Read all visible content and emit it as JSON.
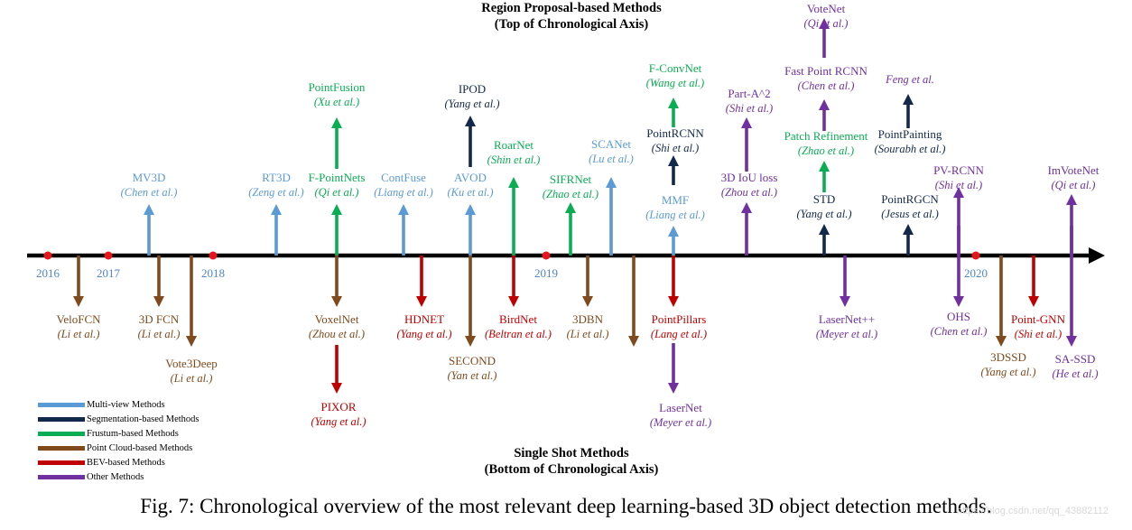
{
  "headers": {
    "top_line1": "Region Proposal-based Methods",
    "top_line2": "(Top of Chronological Axis)",
    "bottom_line1": "Single Shot Methods",
    "bottom_line2": "(Bottom of Chronological Axis)"
  },
  "caption": "Fig. 7: Chronological overview of the most relevant deep learning-based 3D object detection methods.",
  "watermark": "https://blog.csdn.net/qq_43882112",
  "colors": {
    "multiview": "#5b9bd5",
    "segmentation": "#13294b",
    "frustum": "#0aad53",
    "pointcloud": "#7f4a1c",
    "bev": "#c00000",
    "other": "#7030a0",
    "axis": "#000000",
    "marker": "#e8151b",
    "year_text": "#4f86c6"
  },
  "legend": [
    {
      "key": "multiview",
      "label": "Multi-view Methods"
    },
    {
      "key": "segmentation",
      "label": "Segmentation-based Methods"
    },
    {
      "key": "frustum",
      "label": "Frustum-based Methods"
    },
    {
      "key": "pointcloud",
      "label": "Point Cloud-based Methods"
    },
    {
      "key": "bev",
      "label": "BEV-based Methods"
    },
    {
      "key": "other",
      "label": "Other Methods"
    }
  ],
  "years": [
    "2016",
    "2017",
    "2018",
    "2019",
    "2020"
  ],
  "top_methods": [
    {
      "name": "MV3D",
      "cite": "(Chen et al.)",
      "type": "multiview"
    },
    {
      "name": "RT3D",
      "cite": "(Zeng et al.)",
      "type": "multiview"
    },
    {
      "name": "F-PointNets",
      "cite": "(Qi et al.)",
      "type": "frustum"
    },
    {
      "name": "PointFusion",
      "cite": "(Xu et al.)",
      "type": "frustum"
    },
    {
      "name": "ContFuse",
      "cite": "(Liang et al.)",
      "type": "multiview"
    },
    {
      "name": "AVOD",
      "cite": "(Ku et al.)",
      "type": "multiview"
    },
    {
      "name": "IPOD",
      "cite": "(Yang et al.)",
      "type": "segmentation"
    },
    {
      "name": "RoarNet",
      "cite": "(Shin et al.)",
      "type": "frustum"
    },
    {
      "name": "SIFRNet",
      "cite": "(Zhao et al.)",
      "type": "frustum"
    },
    {
      "name": "SCANet",
      "cite": "(Lu et al.)",
      "type": "multiview"
    },
    {
      "name": "MMF",
      "cite": "(Liang et al.)",
      "type": "multiview"
    },
    {
      "name": "PointRCNN",
      "cite": "(Shi et al.)",
      "type": "segmentation"
    },
    {
      "name": "F-ConvNet",
      "cite": "(Wang et al.)",
      "type": "frustum"
    },
    {
      "name": "3D IoU loss",
      "cite": "(Zhou et al.)",
      "type": "other"
    },
    {
      "name": "Part-A^2",
      "cite": "(Shi et al.)",
      "type": "other"
    },
    {
      "name": "STD",
      "cite": "(Yang et al.)",
      "type": "segmentation"
    },
    {
      "name": "Patch Refinement",
      "cite": "(Zhao et al.)",
      "type": "frustum"
    },
    {
      "name": "Fast Point RCNN",
      "cite": "(Chen et al.)",
      "type": "other"
    },
    {
      "name": "VoteNet",
      "cite": "(Qi et al.)",
      "type": "other"
    },
    {
      "name": "PointRGCN",
      "cite": "(Jesus et al.)",
      "type": "segmentation"
    },
    {
      "name": "PointPainting",
      "cite": "(Sourabh et al.)",
      "type": "segmentation"
    },
    {
      "name": "",
      "cite": "Feng et al.",
      "type": "other"
    },
    {
      "name": "PV-RCNN",
      "cite": "(Shi et al.)",
      "type": "other"
    },
    {
      "name": "ImVoteNet",
      "cite": "(Qi et al.)",
      "type": "other"
    }
  ],
  "bottom_methods": [
    {
      "name": "VeloFCN",
      "cite": "(Li et al.)",
      "type": "pointcloud"
    },
    {
      "name": "3D FCN",
      "cite": "(Li et al.)",
      "type": "pointcloud"
    },
    {
      "name": "Vote3Deep",
      "cite": "(Li et al.)",
      "type": "pointcloud"
    },
    {
      "name": "VoxelNet",
      "cite": "(Zhou et al.)",
      "type": "pointcloud"
    },
    {
      "name": "PIXOR",
      "cite": "(Yang et al.)",
      "type": "bev"
    },
    {
      "name": "HDNET",
      "cite": "(Yang et al.)",
      "type": "bev"
    },
    {
      "name": "SECOND",
      "cite": "(Yan et al.)",
      "type": "pointcloud"
    },
    {
      "name": "BirdNet",
      "cite": "(Beltran et al.)",
      "type": "bev"
    },
    {
      "name": "3DBN",
      "cite": "(Li et al.)",
      "type": "pointcloud"
    },
    {
      "name": "",
      "cite": "",
      "type": "pointcloud"
    },
    {
      "name": "PointPillars",
      "cite": "(Lang et al.)",
      "type": "bev"
    },
    {
      "name": "LaserNet",
      "cite": "(Meyer et al.)",
      "type": "other"
    },
    {
      "name": "LaserNet++",
      "cite": "(Meyer et al.)",
      "type": "other"
    },
    {
      "name": "OHS",
      "cite": "(Chen et al.)",
      "type": "other"
    },
    {
      "name": "3DSSD",
      "cite": "(Yang et al.)",
      "type": "pointcloud"
    },
    {
      "name": "Point-GNN",
      "cite": "(Shi et al.)",
      "type": "bev"
    },
    {
      "name": "SA-SSD",
      "cite": "(He et al.)",
      "type": "other"
    }
  ]
}
